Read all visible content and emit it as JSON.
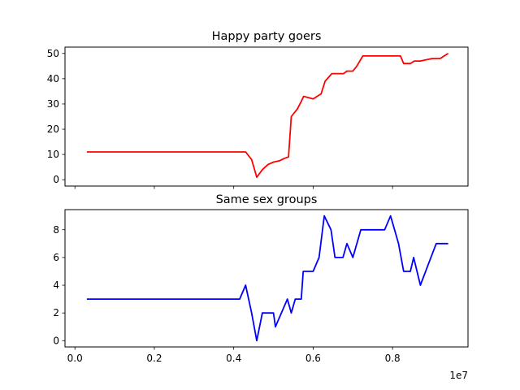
{
  "chart_data": [
    {
      "type": "line",
      "title": "Happy party goers",
      "xlabel": "",
      "ylabel": "",
      "xlim": [
        -250000,
        9900000
      ],
      "ylim": [
        -2.5,
        52.5
      ],
      "xticks": [
        0,
        2000000,
        4000000,
        6000000,
        8000000
      ],
      "xtick_labels": [
        "",
        "",
        "",
        "",
        ""
      ],
      "yticks": [
        0,
        10,
        20,
        30,
        40,
        50
      ],
      "ytick_labels": [
        "0",
        "10",
        "20",
        "30",
        "40",
        "50"
      ],
      "grid": false,
      "color": "#ff0000",
      "x": [
        300000,
        4300000,
        4450000,
        4580000,
        4720000,
        4860000,
        5000000,
        5150000,
        5280000,
        5380000,
        5450000,
        5600000,
        5700000,
        5760000,
        6000000,
        6200000,
        6300000,
        6470000,
        6600000,
        6770000,
        6850000,
        7000000,
        7100000,
        7250000,
        7500000,
        7800000,
        8000000,
        8200000,
        8280000,
        8450000,
        8550000,
        8700000,
        9000000,
        9200000,
        9400000
      ],
      "y": [
        11,
        11,
        8,
        1,
        4,
        6,
        7,
        7.5,
        8.5,
        9,
        25,
        28,
        31,
        33,
        32,
        34,
        39,
        42,
        42,
        42,
        43,
        43,
        45,
        49,
        49,
        49,
        49,
        49,
        46,
        46,
        47,
        47,
        48,
        48,
        50
      ]
    },
    {
      "type": "line",
      "title": "Same sex groups",
      "xlabel": "",
      "ylabel": "",
      "xlim": [
        -250000,
        9900000
      ],
      "ylim": [
        -0.45,
        9.45
      ],
      "xticks": [
        0,
        2000000,
        4000000,
        6000000,
        8000000
      ],
      "xtick_labels": [
        "0.0",
        "0.2",
        "0.4",
        "0.6",
        "0.8"
      ],
      "x_offset_label": "1e7",
      "yticks": [
        0,
        2,
        4,
        6,
        8
      ],
      "ytick_labels": [
        "0",
        "2",
        "4",
        "6",
        "8"
      ],
      "grid": false,
      "color": "#0000ff",
      "x": [
        300000,
        4150000,
        4300000,
        4450000,
        4580000,
        4720000,
        4850000,
        5000000,
        5050000,
        5350000,
        5450000,
        5550000,
        5700000,
        5750000,
        6000000,
        6150000,
        6280000,
        6450000,
        6550000,
        6750000,
        6850000,
        7000000,
        7200000,
        7500000,
        7800000,
        7950000,
        8150000,
        8280000,
        8450000,
        8530000,
        8700000,
        8900000,
        9100000,
        9400000
      ],
      "y": [
        3,
        3,
        4,
        2,
        0,
        2,
        2,
        2,
        1,
        3,
        2,
        3,
        3,
        5,
        5,
        6,
        9,
        8,
        6,
        6,
        7,
        6,
        8,
        8,
        8,
        9,
        7,
        5,
        5,
        6,
        4,
        5.5,
        7,
        7
      ]
    }
  ]
}
